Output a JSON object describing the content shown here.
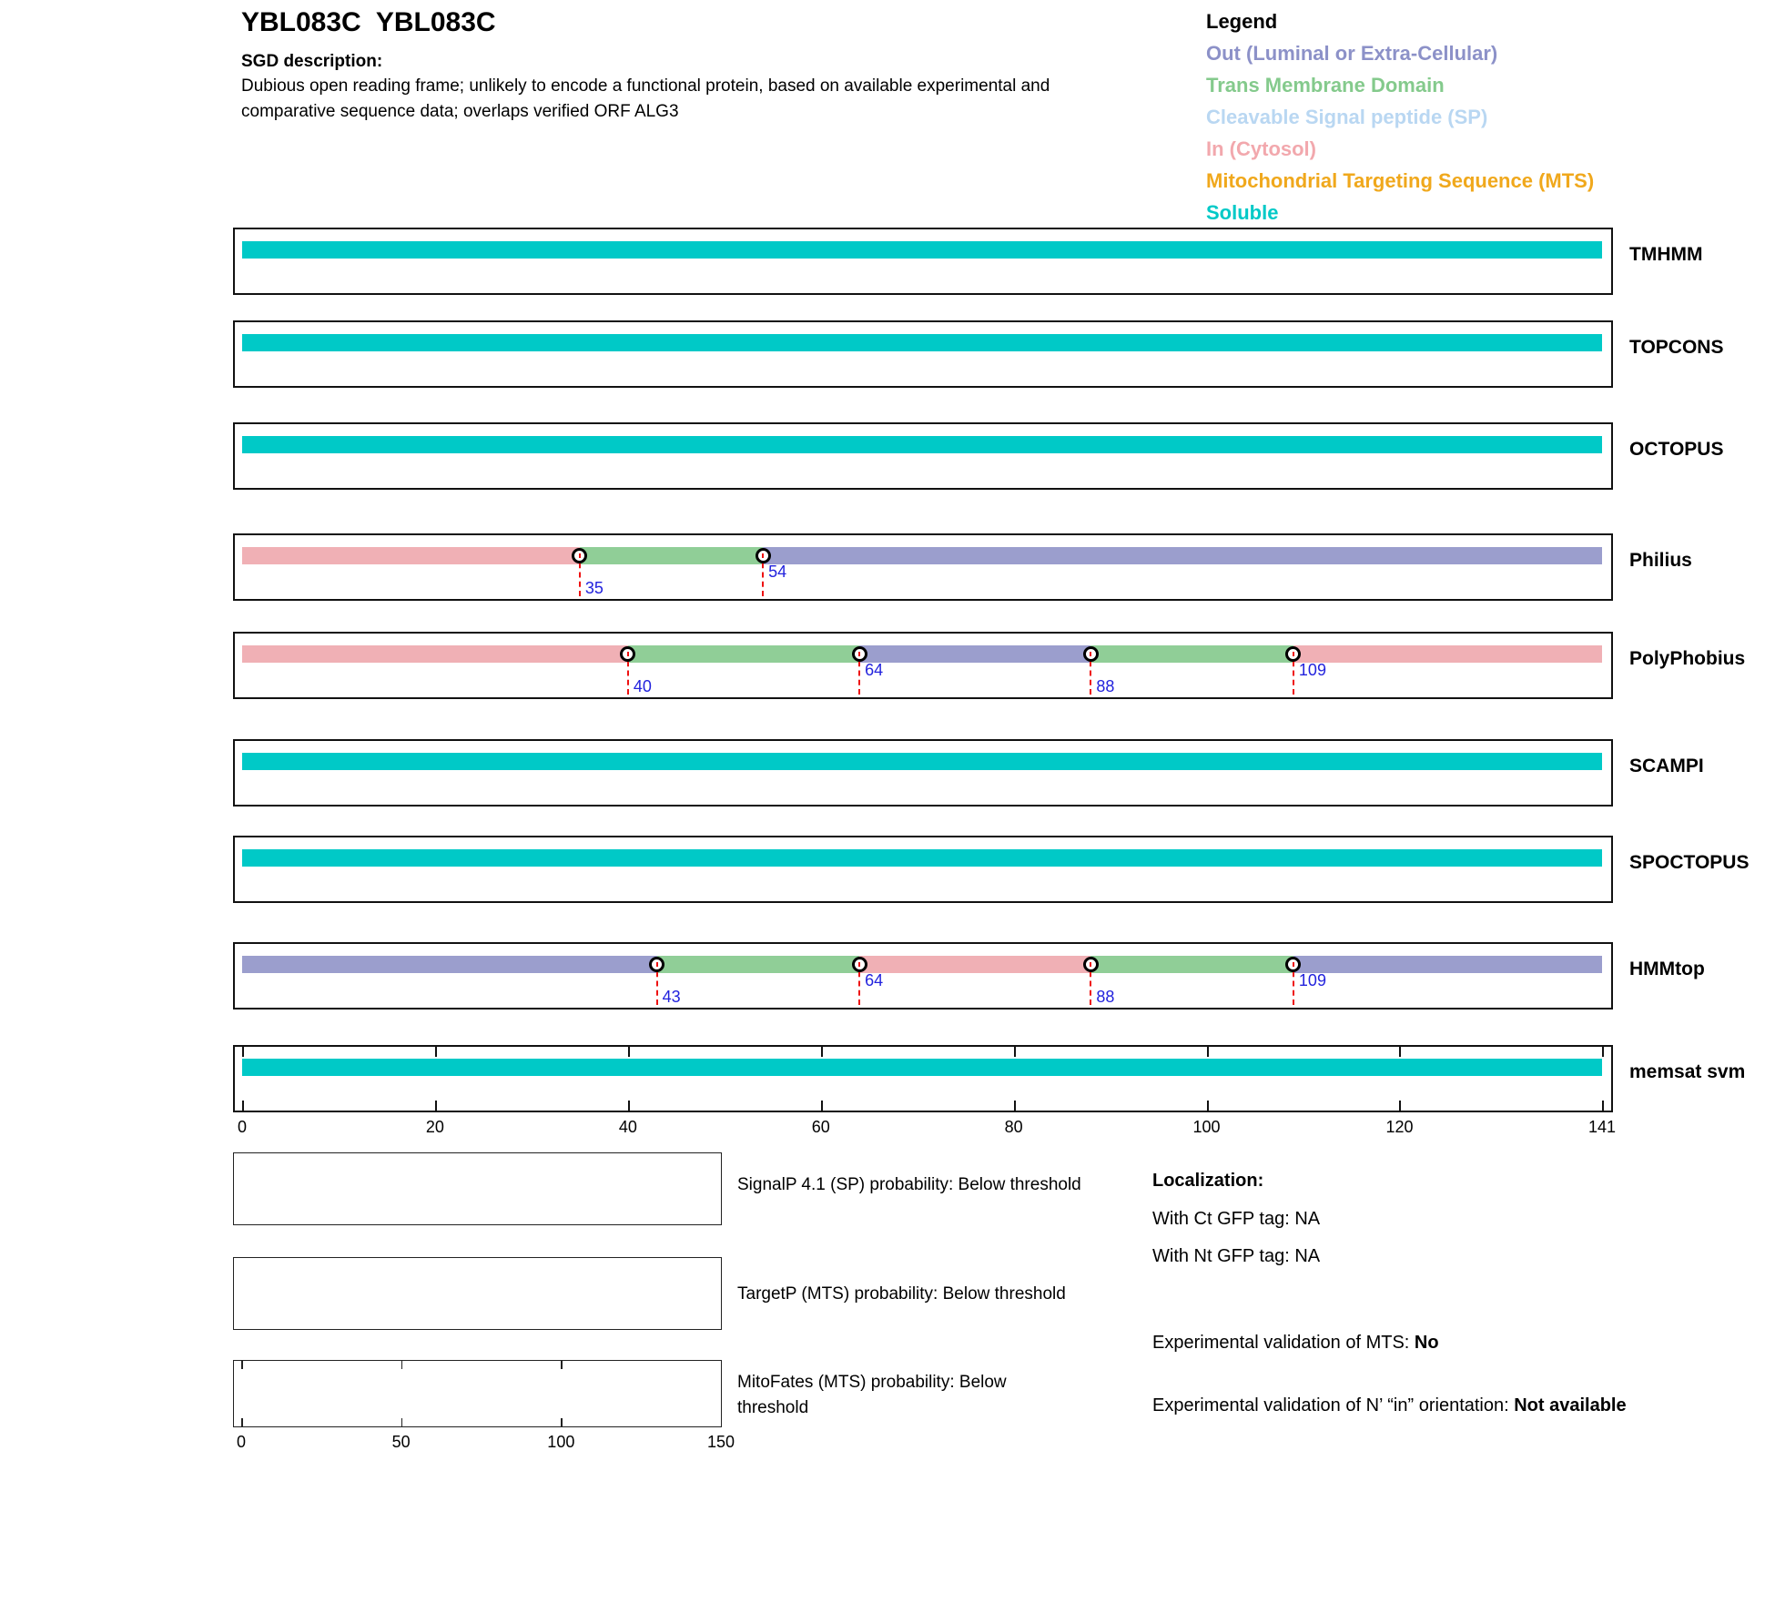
{
  "header": {
    "title": "YBL083C  YBL083C",
    "sgd_heading": "SGD description:",
    "sgd_text": "Dubious open reading frame; unlikely to encode a functional protein, based on available experimental and comparative sequence data; overlaps verified ORF ALG3"
  },
  "legend": {
    "heading": "Legend",
    "items": [
      {
        "key": "out",
        "label": "Out (Luminal or Extra-Cellular)",
        "color": "#8c91c8"
      },
      {
        "key": "tm",
        "label": "Trans Membrane Domain",
        "color": "#84ca8c"
      },
      {
        "key": "sp",
        "label": "Cleavable Signal peptide (SP)",
        "color": "#b9d7f2"
      },
      {
        "key": "in",
        "label": "In (Cytosol)",
        "color": "#f2a8ad"
      },
      {
        "key": "mts",
        "label": "Mitochondrial Targeting Sequence (MTS)",
        "color": "#f0a81c"
      },
      {
        "key": "soluble",
        "label": "Soluble",
        "color": "#00c9c7"
      }
    ]
  },
  "chart_data": {
    "type": "topology-tracks",
    "x_range": [
      0,
      141
    ],
    "axis_ticks": [
      0,
      20,
      40,
      60,
      80,
      100,
      120,
      141
    ],
    "segment_colors": {
      "in": "#f0b0b5",
      "tm": "#90ce97",
      "out": "#9b9ecd",
      "soluble": "#00c9c7"
    },
    "tracks": [
      {
        "name": "TMHMM",
        "segments": [
          {
            "start": 0,
            "end": 141,
            "type": "soluble"
          }
        ],
        "markers": []
      },
      {
        "name": "TOPCONS",
        "segments": [
          {
            "start": 0,
            "end": 141,
            "type": "soluble"
          }
        ],
        "markers": []
      },
      {
        "name": "OCTOPUS",
        "segments": [
          {
            "start": 0,
            "end": 141,
            "type": "soluble"
          }
        ],
        "markers": []
      },
      {
        "name": "Philius",
        "segments": [
          {
            "start": 0,
            "end": 35,
            "type": "in"
          },
          {
            "start": 35,
            "end": 54,
            "type": "tm"
          },
          {
            "start": 54,
            "end": 141,
            "type": "out"
          }
        ],
        "markers": [
          {
            "pos": 35,
            "level": "low"
          },
          {
            "pos": 54,
            "level": "high"
          }
        ]
      },
      {
        "name": "PolyPhobius",
        "segments": [
          {
            "start": 0,
            "end": 40,
            "type": "in"
          },
          {
            "start": 40,
            "end": 64,
            "type": "tm"
          },
          {
            "start": 64,
            "end": 88,
            "type": "out"
          },
          {
            "start": 88,
            "end": 109,
            "type": "tm"
          },
          {
            "start": 109,
            "end": 141,
            "type": "in"
          }
        ],
        "markers": [
          {
            "pos": 40,
            "level": "low"
          },
          {
            "pos": 64,
            "level": "high"
          },
          {
            "pos": 88,
            "level": "low"
          },
          {
            "pos": 109,
            "level": "high"
          }
        ]
      },
      {
        "name": "SCAMPI",
        "segments": [
          {
            "start": 0,
            "end": 141,
            "type": "soluble"
          }
        ],
        "markers": []
      },
      {
        "name": "SPOCTOPUS",
        "segments": [
          {
            "start": 0,
            "end": 141,
            "type": "soluble"
          }
        ],
        "markers": []
      },
      {
        "name": "HMMtop",
        "segments": [
          {
            "start": 0,
            "end": 43,
            "type": "out"
          },
          {
            "start": 43,
            "end": 64,
            "type": "tm"
          },
          {
            "start": 64,
            "end": 88,
            "type": "in"
          },
          {
            "start": 88,
            "end": 109,
            "type": "tm"
          },
          {
            "start": 109,
            "end": 141,
            "type": "out"
          }
        ],
        "markers": [
          {
            "pos": 43,
            "level": "low"
          },
          {
            "pos": 64,
            "level": "high"
          },
          {
            "pos": 88,
            "level": "low"
          },
          {
            "pos": 109,
            "level": "high"
          }
        ]
      },
      {
        "name": "memsat svm",
        "segments": [
          {
            "start": 0,
            "end": 141,
            "type": "soluble"
          }
        ],
        "markers": [],
        "ticks": true
      }
    ]
  },
  "probability_plots": [
    {
      "label": "SignalP 4.1 (SP) probability: Below threshold",
      "axis_ticks": [],
      "x_range": null
    },
    {
      "label": "TargetP (MTS) probability: Below threshold",
      "axis_ticks": [],
      "x_range": null
    },
    {
      "label": "MitoFates (MTS) probability: Below threshold",
      "axis_ticks": [
        0,
        50,
        100,
        150
      ],
      "x_range": [
        0,
        150
      ]
    }
  ],
  "localization": {
    "heading": "Localization:",
    "lines": [
      "With Ct GFP tag: NA",
      "With Nt GFP tag: NA"
    ],
    "mts_label": "Experimental validation of MTS: ",
    "mts_value": "No",
    "orientation_label": "Experimental validation of N’ “in” orientation: ",
    "orientation_value": "Not available"
  }
}
